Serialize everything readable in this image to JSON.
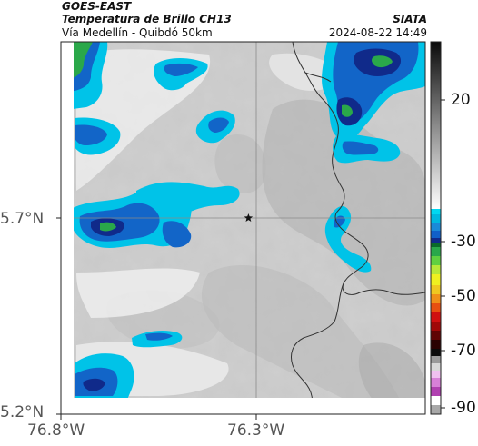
{
  "header": {
    "satellite": "GOES-EAST",
    "product": "Temperatura de Brillo CH13",
    "route": "Vía Medellín - Quibdó 50km",
    "source": "SIATA",
    "timestamp": "2024-08-22 14:49"
  },
  "axes": {
    "lat_ticks": [
      "5.7°N",
      "5.2°N"
    ],
    "lon_ticks": [
      "76.8°W",
      "76.3°W"
    ]
  },
  "colorbar": {
    "tick_labels": [
      "20",
      "-30",
      "-50",
      "-70",
      "-90"
    ]
  },
  "marker": {
    "name": "star-marker",
    "lon": -76.32,
    "lat": 5.7
  },
  "colors": {
    "cloud_shallow": "#00bfe6",
    "cloud_mid": "#1060c8",
    "cloud_deep": "#102a8a",
    "cloud_core": "#2aa84a",
    "ground_gray": "#c8c8c8",
    "border": "#333333"
  }
}
